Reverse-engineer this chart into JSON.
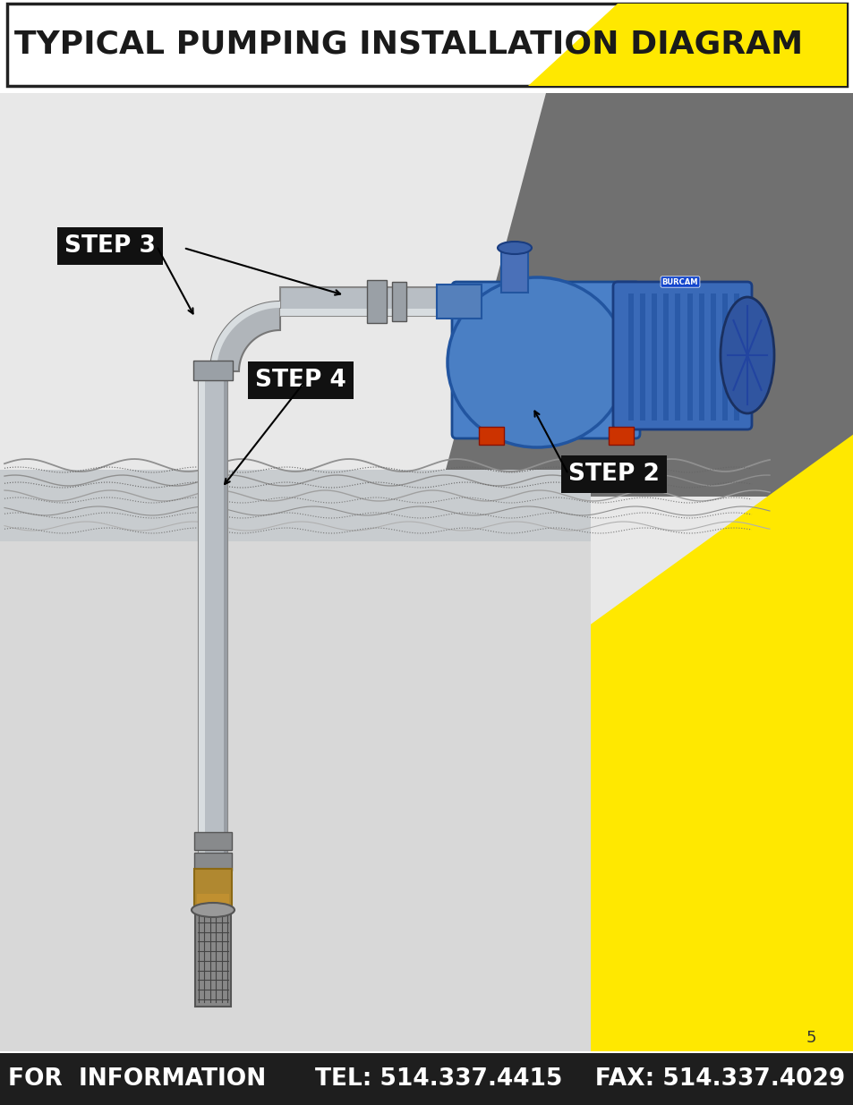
{
  "title": "TYPICAL PUMPING INSTALLATION DIAGRAM",
  "title_fontsize": 26,
  "title_color": "#1a1a1a",
  "background_color": "#ffffff",
  "yellow_color": "#FFE800",
  "footer_text": "FOR  INFORMATION      TEL: 514.337.4415    FAX: 514.337.4029",
  "footer_fontsize": 19,
  "footer_bg": "#1e1e1e",
  "footer_fg": "#ffffff",
  "page_number": "5",
  "main_bg": "#e8e8e8",
  "ground_top_color": "#d0d0d0",
  "ground_bottom_color": "#c0c4c6",
  "dark_panel_color": "#6e6e6e",
  "pipe_color": "#b8bec4",
  "pipe_edge": "#888888",
  "pipe_highlight": "#d8dde0"
}
